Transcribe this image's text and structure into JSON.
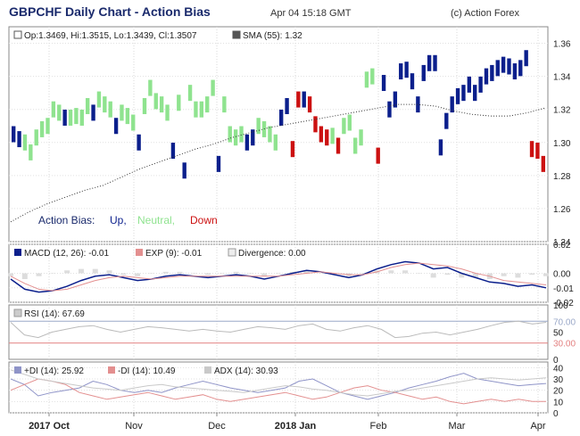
{
  "header": {
    "title": "GBPCHF Daily Chart - Action Bias",
    "date": "Apr 04 15:18 GMT",
    "credit": "(c) Action Forex"
  },
  "colors": {
    "up": "#0b1f8c",
    "neutral": "#8fe38f",
    "down": "#cc1111",
    "sma": "#333333",
    "macd": "#0b1f8c",
    "exp": "#e39090",
    "rsi": "#bbbbbb",
    "rsi_line_70": "#9aa8c8",
    "rsi_line_30": "#e38080",
    "plus_di": "#8f94c8",
    "minus_di": "#e38f8f",
    "adx": "#c9c9c9"
  },
  "chart_data": [
    {
      "type": "bar",
      "title": "",
      "legend": [
        "Op:1.3469, Hi:1.3515, Lo:1.3439, Cl:1.3507",
        "SMA (55): 1.32"
      ],
      "bias_legend": {
        "label": "Action Bias:",
        "up": "Up,",
        "neutral": "Neutral,",
        "down": "Down"
      },
      "y_ticks": [
        "1.36",
        "1.34",
        "1.32",
        "1.30",
        "1.28",
        "1.26",
        "1.24"
      ],
      "ylim": [
        1.24,
        1.37
      ],
      "x_ticks": [
        "2017 Oct",
        "Nov",
        "Dec",
        "2018 Jan",
        "Feb",
        "Mar",
        "Apr"
      ],
      "series": [
        {
          "name": "Up",
          "values": [
            1.305,
            1.302,
            1.315,
            1.318,
            1.31,
            1.3,
            1.295,
            1.283,
            1.287,
            1.3,
            1.303,
            1.315,
            1.322,
            1.326,
            1.336,
            1.32,
            1.326,
            1.343,
            1.344,
            1.337,
            1.323,
            1.342,
            1.348,
            1.348,
            1.297,
            1.313,
            1.323,
            1.328,
            1.33,
            1.335,
            1.33,
            1.335,
            1.34,
            1.342,
            1.345,
            1.347,
            1.346,
            1.343,
            1.345,
            1.351
          ]
        },
        {
          "name": "Neutral",
          "values": [
            1.3,
            1.294,
            1.303,
            1.308,
            1.31,
            1.32,
            1.318,
            1.315,
            1.316,
            1.315,
            1.322,
            1.326,
            1.323,
            1.32,
            1.318,
            1.316,
            1.312,
            1.322,
            1.333,
            1.325,
            1.323,
            1.318,
            1.324,
            1.33,
            1.32,
            1.32,
            1.323,
            1.333,
            1.323,
            1.305,
            1.303,
            1.305,
            1.31,
            1.308,
            1.305,
            1.3,
            1.304,
            1.31,
            1.312,
            1.298,
            1.303,
            1.338,
            1.34
          ]
        },
        {
          "name": "Down",
          "values": [
            1.296,
            1.326,
            1.323,
            1.311,
            1.305,
            1.303,
            1.298,
            1.292,
            1.296,
            1.295,
            1.287
          ]
        }
      ],
      "sma_values": [
        1.252,
        1.258,
        1.263,
        1.267,
        1.271,
        1.274,
        1.279,
        1.284,
        1.288,
        1.292,
        1.296,
        1.299,
        1.303,
        1.306,
        1.309,
        1.311,
        1.313,
        1.315,
        1.317,
        1.319,
        1.321,
        1.323,
        1.323,
        1.322,
        1.319,
        1.317,
        1.316,
        1.316,
        1.318,
        1.321
      ]
    },
    {
      "type": "line",
      "legend": [
        "MACD (12, 26): -0.01",
        "EXP (9): -0.01",
        "Divergence: 0.00"
      ],
      "y_ticks": [
        "0.02",
        "0.00",
        "-0.01",
        "-0.02"
      ],
      "ylim": [
        -0.02,
        0.02
      ],
      "series": [
        {
          "name": "MACD (12, 26)",
          "values": [
            -0.004,
            -0.011,
            -0.013,
            -0.012,
            -0.009,
            -0.005,
            -0.002,
            -0.001,
            -0.003,
            -0.005,
            -0.004,
            -0.002,
            -0.001,
            -0.002,
            -0.003,
            -0.002,
            -0.001,
            -0.002,
            -0.004,
            -0.002,
            0.0,
            0.002,
            0.001,
            -0.001,
            -0.003,
            -0.001,
            0.003,
            0.006,
            0.008,
            0.007,
            0.003,
            0.004,
            0.0,
            -0.003,
            -0.006,
            -0.007,
            -0.009,
            -0.008,
            -0.01
          ]
        },
        {
          "name": "EXP (9)",
          "values": [
            -0.002,
            -0.007,
            -0.011,
            -0.012,
            -0.011,
            -0.008,
            -0.005,
            -0.003,
            -0.002,
            -0.003,
            -0.004,
            -0.003,
            -0.002,
            -0.002,
            -0.002,
            -0.002,
            -0.002,
            -0.002,
            -0.002,
            -0.002,
            -0.001,
            0.0,
            0.001,
            0.0,
            -0.001,
            -0.001,
            0.001,
            0.004,
            0.006,
            0.007,
            0.006,
            0.005,
            0.003,
            0.0,
            -0.002,
            -0.005,
            -0.006,
            -0.007,
            -0.008
          ]
        }
      ]
    },
    {
      "type": "line",
      "legend": [
        "RSI (14): 67.69"
      ],
      "y_ticks": [
        "100",
        "70.00",
        "50",
        "30.00",
        "0"
      ],
      "ylim": [
        0,
        100
      ],
      "series": [
        {
          "name": "RSI (14)",
          "values": [
            68,
            45,
            40,
            50,
            55,
            60,
            62,
            55,
            50,
            55,
            60,
            58,
            55,
            52,
            55,
            52,
            50,
            55,
            60,
            58,
            55,
            62,
            65,
            55,
            52,
            58,
            62,
            55,
            40,
            42,
            48,
            50,
            45,
            50,
            55,
            62,
            68,
            70,
            65,
            68
          ]
        }
      ]
    },
    {
      "type": "line",
      "legend": [
        "+DI (14): 25.92",
        "-DI (14): 10.49",
        "ADX (14): 30.93"
      ],
      "y_ticks": [
        "40",
        "30",
        "20",
        "10",
        "0"
      ],
      "ylim": [
        0,
        45
      ],
      "series": [
        {
          "name": "+DI (14)",
          "values": [
            30,
            25,
            15,
            18,
            20,
            22,
            28,
            25,
            20,
            18,
            20,
            18,
            22,
            25,
            28,
            25,
            22,
            20,
            18,
            20,
            22,
            28,
            30,
            24,
            18,
            15,
            12,
            15,
            18,
            22,
            25,
            28,
            32,
            35,
            30,
            28,
            26,
            24,
            25,
            26
          ]
        },
        {
          "name": "-DI (14)",
          "values": [
            20,
            25,
            30,
            28,
            25,
            18,
            15,
            12,
            14,
            16,
            18,
            15,
            12,
            14,
            16,
            12,
            10,
            12,
            14,
            16,
            18,
            15,
            12,
            14,
            18,
            22,
            24,
            20,
            18,
            15,
            12,
            14,
            10,
            8,
            10,
            12,
            10,
            12,
            10,
            10
          ]
        },
        {
          "name": "ADX (14)",
          "values": [
            38,
            34,
            30,
            28,
            26,
            24,
            22,
            21,
            20,
            22,
            24,
            25,
            23,
            22,
            21,
            20,
            19,
            18,
            20,
            22,
            24,
            23,
            21,
            20,
            18,
            16,
            15,
            17,
            19,
            20,
            22,
            24,
            26,
            28,
            30,
            31,
            30,
            29,
            30,
            31
          ]
        }
      ]
    }
  ]
}
